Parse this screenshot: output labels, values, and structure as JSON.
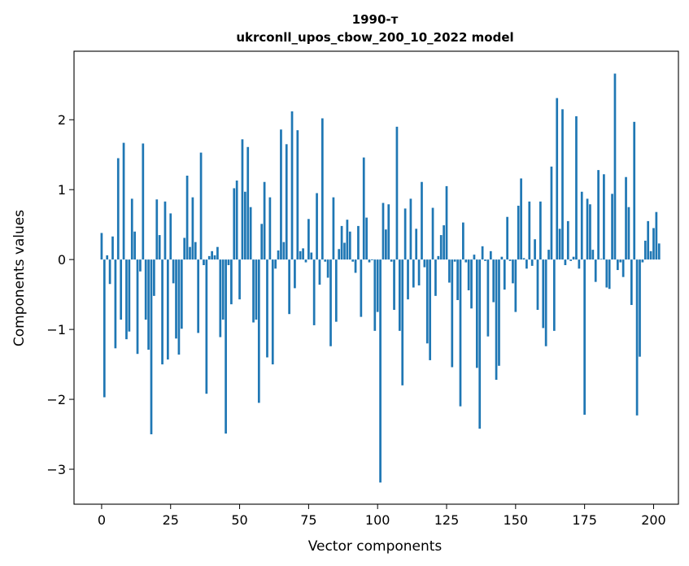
{
  "chart_data": {
    "type": "bar",
    "title_line1": "1990-т",
    "title_line2": "ukrconll_upos_cbow_200_10_2022 model",
    "xlabel": "Vector components",
    "ylabel": "Components values",
    "xlim": [
      -10,
      209
    ],
    "ylim": [
      -3.5,
      2.98
    ],
    "xticks": [
      0,
      25,
      50,
      75,
      100,
      125,
      150,
      175,
      200
    ],
    "yticks": [
      -3,
      -2,
      -1,
      0,
      1,
      2
    ],
    "ytick_labels": [
      "−3",
      "−2",
      "−1",
      "0",
      "1",
      "2"
    ],
    "bar_color": "#1f77b4",
    "grid": false,
    "values": [
      0.38,
      -1.97,
      0.06,
      -0.35,
      0.33,
      -1.27,
      1.45,
      -0.86,
      1.67,
      -1.14,
      -1.03,
      0.87,
      0.4,
      -1.35,
      -0.17,
      1.66,
      -0.86,
      -1.29,
      -2.5,
      -0.52,
      0.86,
      0.35,
      -1.5,
      0.83,
      -1.43,
      0.66,
      -0.34,
      -1.13,
      -1.36,
      -0.99,
      0.31,
      1.2,
      0.18,
      0.89,
      0.25,
      -1.05,
      1.53,
      -0.08,
      -1.92,
      0.05,
      0.12,
      0.06,
      0.18,
      -1.11,
      -0.86,
      -2.49,
      -0.08,
      -0.64,
      1.02,
      1.13,
      -0.57,
      1.72,
      0.97,
      1.61,
      0.75,
      -0.9,
      -0.86,
      -2.05,
      0.51,
      1.11,
      -1.4,
      0.89,
      -1.5,
      -0.13,
      0.13,
      1.86,
      0.25,
      1.65,
      -0.78,
      2.12,
      -0.41,
      1.85,
      0.12,
      0.16,
      -0.04,
      0.58,
      0.1,
      -0.94,
      0.95,
      -0.36,
      2.02,
      -0.03,
      -0.26,
      -1.24,
      0.89,
      -0.89,
      0.15,
      0.48,
      0.24,
      0.57,
      0.4,
      -0.03,
      -0.19,
      0.48,
      -0.82,
      1.46,
      0.6,
      -0.04,
      -0.01,
      -1.02,
      -0.75,
      -3.19,
      0.81,
      0.43,
      0.79,
      -0.03,
      -0.72,
      1.9,
      -1.02,
      -1.8,
      0.73,
      -0.57,
      0.87,
      -0.4,
      0.44,
      -0.37,
      1.11,
      -0.11,
      -1.2,
      -1.44,
      0.74,
      -0.52,
      0.05,
      0.35,
      0.49,
      1.05,
      -0.33,
      -1.54,
      -0.03,
      -0.58,
      -2.1,
      0.53,
      -0.04,
      -0.44,
      -0.7,
      0.07,
      -1.55,
      -2.42,
      0.19,
      -0.02,
      -1.1,
      0.12,
      -0.61,
      -1.72,
      -1.52,
      0.04,
      -0.43,
      0.61,
      -0.02,
      -0.34,
      -0.75,
      0.77,
      1.16,
      0.02,
      -0.13,
      0.83,
      -0.09,
      0.29,
      -0.72,
      0.83,
      -0.98,
      -1.24,
      0.14,
      1.33,
      -1.02,
      2.31,
      0.44,
      2.15,
      -0.08,
      0.55,
      -0.02,
      0.04,
      2.05,
      -0.13,
      0.97,
      -2.22,
      0.87,
      0.79,
      0.14,
      -0.32,
      1.28,
      0.01,
      1.22,
      -0.4,
      -0.42,
      0.94,
      2.66,
      -0.15,
      -0.04,
      -0.25,
      1.18,
      0.75,
      -0.65,
      1.97,
      -2.23,
      -1.39,
      -0.04,
      0.27,
      0.55,
      0.12,
      0.45,
      0.68,
      0.23
    ]
  }
}
